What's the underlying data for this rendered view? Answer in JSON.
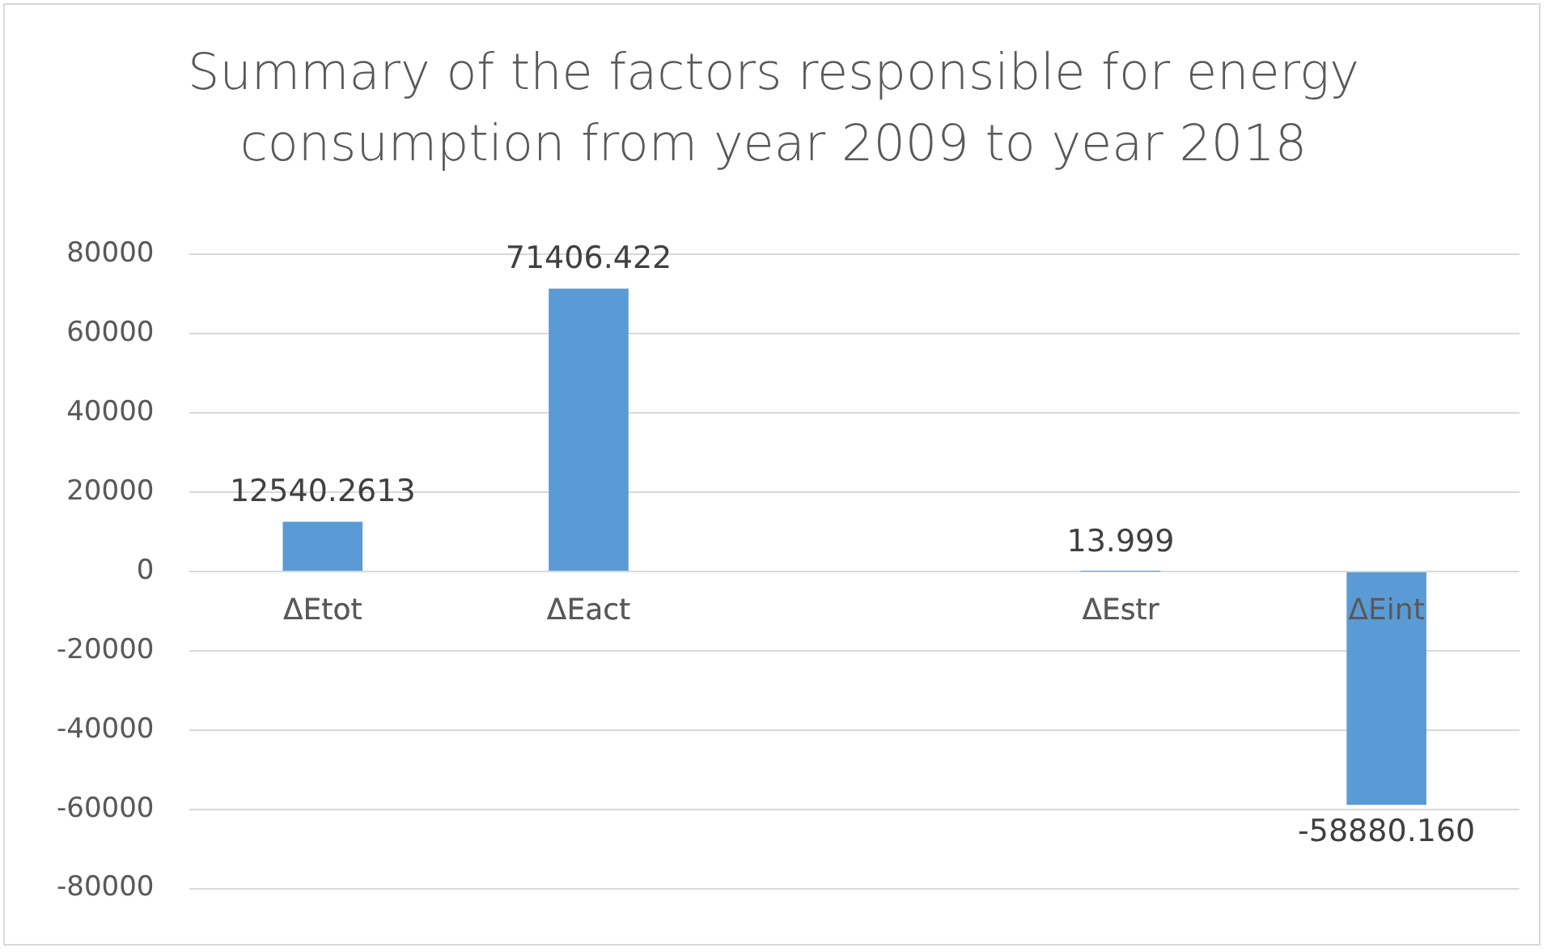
{
  "chart_data": {
    "type": "bar",
    "title": "Summary of the factors responsible for energy consumption from year 2009 to year 2018",
    "categories": [
      "ΔEtot",
      "ΔEact",
      null,
      "ΔEstr",
      "ΔEint"
    ],
    "values": [
      12540.2613,
      71406.422,
      null,
      13.999,
      -58880.16
    ],
    "value_labels": [
      "12540.2613",
      "71406.422",
      null,
      "13.999",
      "-58880.160"
    ],
    "color": "#5b9bd5",
    "ylim": [
      -80000,
      80000
    ],
    "yticks": [
      -80000,
      -60000,
      -40000,
      -20000,
      0,
      20000,
      40000,
      60000,
      80000
    ],
    "grid": "y",
    "legend": false
  }
}
